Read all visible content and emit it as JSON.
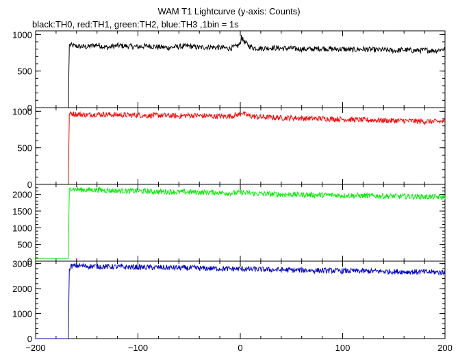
{
  "title": "WAM T1 Lightcurve (y-axis: Counts)",
  "subtitle": "black:TH0, red:TH1, green:TH2, blue:TH3 ,1bin = 1s",
  "chart_data": {
    "type": "line",
    "title": "WAM T1 Lightcurve (y-axis: Counts)",
    "subtitle": "black:TH0, red:TH1, green:TH2, blue:TH3 ,1bin = 1s",
    "xlim": [
      -200,
      200
    ],
    "x_ticks": [
      -200,
      -100,
      0,
      100,
      200
    ],
    "x_tick_labels": [
      "−200",
      "−100",
      "0",
      "100",
      "200"
    ],
    "panels": [
      {
        "name": "TH0",
        "color": "#000000",
        "ylim": [
          0,
          1050
        ],
        "y_ticks": [
          0,
          500,
          1000
        ],
        "y_tick_labels": [
          "0",
          "500",
          "1000"
        ],
        "x": [
          -205,
          -168,
          -167.5,
          -167,
          -165,
          -160,
          -150,
          -140,
          -130,
          -120,
          -110,
          -100,
          -90,
          -80,
          -70,
          -60,
          -50,
          -40,
          -30,
          -20,
          -10,
          -5,
          0,
          1,
          2,
          4,
          8,
          12,
          20,
          30,
          40,
          50,
          60,
          70,
          80,
          90,
          100,
          110,
          120,
          130,
          140,
          150,
          160,
          170,
          180,
          190,
          198
        ],
        "values": [
          0,
          0,
          500,
          860,
          850,
          840,
          830,
          860,
          820,
          850,
          840,
          830,
          845,
          830,
          820,
          835,
          840,
          820,
          830,
          820,
          810,
          830,
          870,
          980,
          940,
          900,
          850,
          820,
          810,
          820,
          810,
          810,
          800,
          800,
          810,
          800,
          800,
          790,
          800,
          790,
          790,
          780,
          790,
          780,
          785,
          780,
          800
        ]
      },
      {
        "name": "TH1",
        "color": "#ff0000",
        "ylim": [
          0,
          1050
        ],
        "y_ticks": [
          0,
          500,
          1000
        ],
        "y_tick_labels": [
          "0",
          "500",
          "1000"
        ],
        "x": [
          -205,
          -168,
          -167.5,
          -167,
          -165,
          -160,
          -150,
          -140,
          -130,
          -120,
          -110,
          -100,
          -90,
          -80,
          -70,
          -60,
          -50,
          -40,
          -30,
          -20,
          -10,
          -5,
          0,
          1,
          2,
          4,
          8,
          12,
          20,
          30,
          40,
          50,
          60,
          70,
          80,
          90,
          100,
          110,
          120,
          130,
          140,
          150,
          160,
          170,
          180,
          190,
          198
        ],
        "values": [
          0,
          0,
          550,
          960,
          970,
          960,
          950,
          960,
          955,
          950,
          945,
          950,
          940,
          945,
          940,
          935,
          945,
          940,
          935,
          930,
          935,
          945,
          960,
          990,
          980,
          960,
          940,
          930,
          920,
          915,
          910,
          910,
          905,
          900,
          900,
          895,
          890,
          885,
          880,
          880,
          875,
          870,
          870,
          865,
          860,
          860,
          860
        ]
      },
      {
        "name": "TH2",
        "color": "#00ee00",
        "ylim": [
          0,
          2300
        ],
        "y_ticks": [
          0,
          500,
          1000,
          1500,
          2000
        ],
        "y_tick_labels": [
          "0",
          "500",
          "1000",
          "1500",
          "2000"
        ],
        "x": [
          -205,
          -168,
          -167.5,
          -167,
          -165,
          -160,
          -150,
          -140,
          -130,
          -120,
          -110,
          -100,
          -90,
          -80,
          -70,
          -60,
          -50,
          -40,
          -30,
          -20,
          -10,
          -5,
          0,
          1,
          2,
          4,
          8,
          12,
          20,
          30,
          40,
          50,
          60,
          70,
          80,
          90,
          100,
          110,
          120,
          130,
          140,
          150,
          160,
          170,
          180,
          190,
          198
        ],
        "values": [
          80,
          80,
          1300,
          2160,
          2180,
          2150,
          2130,
          2140,
          2120,
          2110,
          2100,
          2105,
          2090,
          2080,
          2085,
          2070,
          2075,
          2060,
          2065,
          2050,
          2040,
          2045,
          2050,
          2060,
          2055,
          2050,
          2040,
          2030,
          2020,
          2010,
          2000,
          1995,
          1990,
          1985,
          1980,
          1975,
          1970,
          1965,
          1960,
          1955,
          1950,
          1945,
          1940,
          1935,
          1930,
          1925,
          1920
        ]
      },
      {
        "name": "TH3",
        "color": "#0000cc",
        "ylim": [
          0,
          3100
        ],
        "y_ticks": [
          0,
          1000,
          2000,
          3000
        ],
        "y_tick_labels": [
          "0",
          "1000",
          "2000",
          "3000"
        ],
        "x": [
          -205,
          -168,
          -167.5,
          -167,
          -165,
          -160,
          -150,
          -140,
          -130,
          -120,
          -110,
          -100,
          -90,
          -80,
          -70,
          -60,
          -50,
          -40,
          -30,
          -20,
          -10,
          -5,
          0,
          1,
          2,
          4,
          8,
          12,
          20,
          30,
          40,
          50,
          60,
          70,
          80,
          90,
          100,
          110,
          120,
          130,
          140,
          150,
          160,
          170,
          180,
          190,
          198
        ],
        "values": [
          0,
          0,
          1600,
          2800,
          2900,
          2920,
          2900,
          2890,
          2880,
          2870,
          2865,
          2860,
          2850,
          2845,
          2840,
          2830,
          2825,
          2815,
          2810,
          2800,
          2795,
          2790,
          2790,
          2795,
          2790,
          2785,
          2780,
          2775,
          2770,
          2760,
          2750,
          2745,
          2740,
          2730,
          2725,
          2720,
          2710,
          2705,
          2700,
          2695,
          2690,
          2680,
          2675,
          2670,
          2665,
          2660,
          2650
        ]
      }
    ]
  }
}
